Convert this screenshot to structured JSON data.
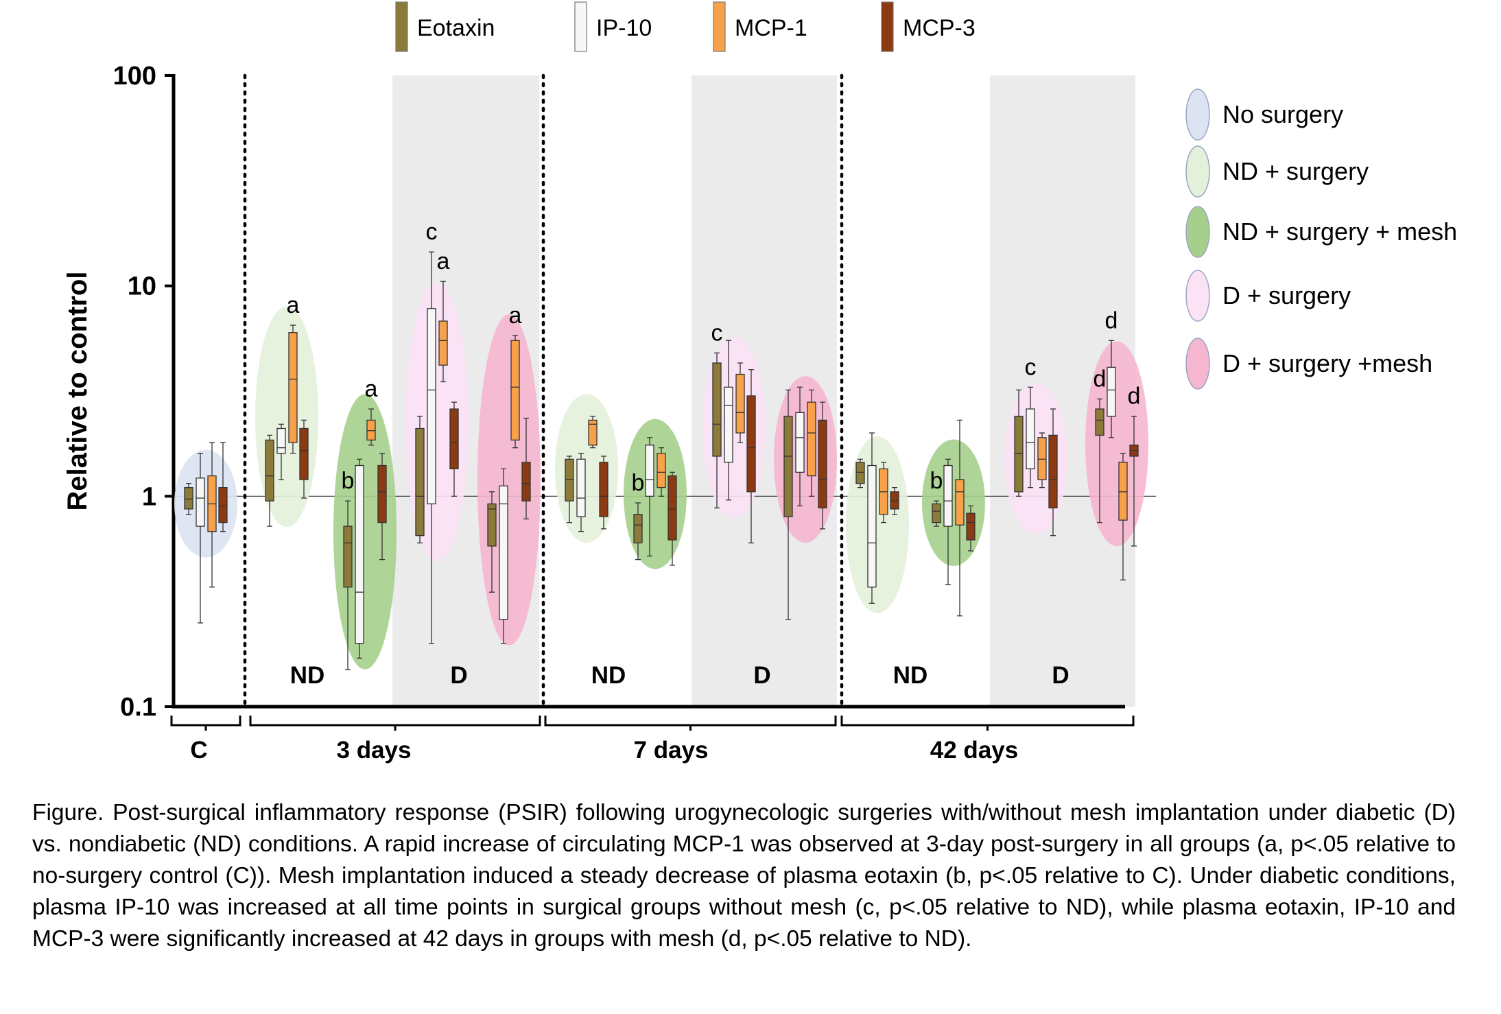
{
  "chart_data": {
    "type": "boxplot",
    "ylabel": "Relative to control",
    "yscale": "log",
    "ylim": [
      0.1,
      100
    ],
    "yticks": [
      "100",
      "10",
      "1",
      "0.1"
    ],
    "reference_line": 1,
    "marker_legend": [
      {
        "name": "Eotaxin",
        "color": "#8B7A3A"
      },
      {
        "name": "IP-10",
        "color": "#F7F7F7"
      },
      {
        "name": "MCP-1",
        "color": "#F7A14B"
      },
      {
        "name": "MCP-3",
        "color": "#8B3A12"
      }
    ],
    "group_legend": [
      {
        "name": "No surgery",
        "color": "#DCE3F2"
      },
      {
        "name": "ND + surgery",
        "color": "#E3F0DA"
      },
      {
        "name": "ND + surgery + mesh",
        "color": "#A6CF8C"
      },
      {
        "name": "D + surgery",
        "color": "#FBE2F5"
      },
      {
        "name": "D + surgery +mesh",
        "color": "#F5B6CF"
      }
    ],
    "periods": [
      {
        "label": "C",
        "subgroups": []
      },
      {
        "label": "3 days",
        "subgroups": [
          "ND",
          "D"
        ]
      },
      {
        "label": "7 days",
        "subgroups": [
          "ND",
          "D"
        ]
      },
      {
        "label": "42 days",
        "subgroups": [
          "ND",
          "D"
        ]
      }
    ],
    "groups": [
      {
        "period": "C",
        "condition": "No surgery",
        "letters": [],
        "boxes": [
          {
            "marker": "Eotaxin",
            "min": 0.82,
            "q1": 0.87,
            "median": 0.97,
            "q3": 1.1,
            "max": 1.15
          },
          {
            "marker": "IP-10",
            "min": 0.25,
            "q1": 0.72,
            "median": 0.98,
            "q3": 1.22,
            "max": 1.6
          },
          {
            "marker": "MCP-1",
            "min": 0.37,
            "q1": 0.68,
            "median": 0.92,
            "q3": 1.25,
            "max": 1.8
          },
          {
            "marker": "MCP-3",
            "min": 0.68,
            "q1": 0.75,
            "median": 0.9,
            "q3": 1.1,
            "max": 1.8
          }
        ]
      },
      {
        "period": "3 days",
        "condition": "ND + surgery",
        "letters": [
          {
            "text": "a",
            "marker": "MCP-1"
          }
        ],
        "boxes": [
          {
            "marker": "Eotaxin",
            "min": 0.72,
            "q1": 0.95,
            "median": 1.25,
            "q3": 1.85,
            "max": 1.95
          },
          {
            "marker": "IP-10",
            "min": 1.2,
            "q1": 1.6,
            "median": 1.7,
            "q3": 2.1,
            "max": 2.2
          },
          {
            "marker": "MCP-1",
            "min": 1.6,
            "q1": 1.8,
            "median": 3.6,
            "q3": 6.0,
            "max": 6.5
          },
          {
            "marker": "MCP-3",
            "min": 0.98,
            "q1": 1.2,
            "median": 1.65,
            "q3": 2.1,
            "max": 2.3
          }
        ]
      },
      {
        "period": "3 days",
        "condition": "ND + surgery + mesh",
        "letters": [
          {
            "text": "b",
            "marker": "Eotaxin"
          },
          {
            "text": "a",
            "marker": "MCP-1"
          }
        ],
        "boxes": [
          {
            "marker": "Eotaxin",
            "min": 0.15,
            "q1": 0.37,
            "median": 0.6,
            "q3": 0.72,
            "max": 0.95
          },
          {
            "marker": "IP-10",
            "min": 0.17,
            "q1": 0.2,
            "median": 0.35,
            "q3": 1.4,
            "max": 1.5
          },
          {
            "marker": "MCP-1",
            "min": 1.75,
            "q1": 1.85,
            "median": 2.05,
            "q3": 2.3,
            "max": 2.6
          },
          {
            "marker": "MCP-3",
            "min": 0.5,
            "q1": 0.75,
            "median": 1.05,
            "q3": 1.4,
            "max": 1.6
          }
        ]
      },
      {
        "period": "3 days",
        "condition": "D + surgery",
        "letters": [
          {
            "text": "c",
            "marker": "IP-10"
          },
          {
            "text": "a",
            "marker": "MCP-1"
          }
        ],
        "boxes": [
          {
            "marker": "Eotaxin",
            "min": 0.6,
            "q1": 0.65,
            "median": 1.0,
            "q3": 2.1,
            "max": 2.4
          },
          {
            "marker": "IP-10",
            "min": 0.2,
            "q1": 0.92,
            "median": 3.2,
            "q3": 7.8,
            "max": 14.5
          },
          {
            "marker": "MCP-1",
            "min": 3.5,
            "q1": 4.2,
            "median": 5.5,
            "q3": 6.8,
            "max": 10.5
          },
          {
            "marker": "MCP-3",
            "min": 1.0,
            "q1": 1.35,
            "median": 1.8,
            "q3": 2.6,
            "max": 2.8
          }
        ]
      },
      {
        "period": "3 days",
        "condition": "D + surgery +mesh",
        "letters": [
          {
            "text": "a",
            "marker": "MCP-1"
          }
        ],
        "boxes": [
          {
            "marker": "Eotaxin",
            "min": 0.35,
            "q1": 0.58,
            "median": 0.87,
            "q3": 0.92,
            "max": 1.05
          },
          {
            "marker": "IP-10",
            "min": 0.2,
            "q1": 0.26,
            "median": 0.92,
            "q3": 1.12,
            "max": 1.35
          },
          {
            "marker": "MCP-1",
            "min": 1.7,
            "q1": 1.85,
            "median": 3.3,
            "q3": 5.5,
            "max": 5.8
          },
          {
            "marker": "MCP-3",
            "min": 0.78,
            "q1": 0.95,
            "median": 1.15,
            "q3": 1.45,
            "max": 2.35
          }
        ]
      },
      {
        "period": "7 days",
        "condition": "ND + surgery",
        "letters": [],
        "boxes": [
          {
            "marker": "Eotaxin",
            "min": 0.75,
            "q1": 0.95,
            "median": 1.2,
            "q3": 1.5,
            "max": 1.55
          },
          {
            "marker": "IP-10",
            "min": 0.68,
            "q1": 0.8,
            "median": 0.98,
            "q3": 1.5,
            "max": 1.6
          },
          {
            "marker": "MCP-1",
            "min": 1.7,
            "q1": 1.75,
            "median": 2.2,
            "q3": 2.3,
            "max": 2.4
          },
          {
            "marker": "MCP-3",
            "min": 0.7,
            "q1": 0.8,
            "median": 1.0,
            "q3": 1.45,
            "max": 1.55
          }
        ]
      },
      {
        "period": "7 days",
        "condition": "ND + surgery + mesh",
        "letters": [
          {
            "text": "b",
            "marker": "Eotaxin"
          }
        ],
        "boxes": [
          {
            "marker": "Eotaxin",
            "min": 0.5,
            "q1": 0.6,
            "median": 0.73,
            "q3": 0.82,
            "max": 0.93
          },
          {
            "marker": "IP-10",
            "min": 0.52,
            "q1": 1.0,
            "median": 1.2,
            "q3": 1.75,
            "max": 1.9
          },
          {
            "marker": "MCP-1",
            "min": 1.0,
            "q1": 1.1,
            "median": 1.3,
            "q3": 1.6,
            "max": 1.7
          },
          {
            "marker": "MCP-3",
            "min": 0.47,
            "q1": 0.62,
            "median": 0.87,
            "q3": 1.25,
            "max": 1.3
          }
        ]
      },
      {
        "period": "7 days",
        "condition": "D + surgery",
        "letters": [
          {
            "text": "c",
            "marker": "Eotaxin"
          }
        ],
        "boxes": [
          {
            "marker": "Eotaxin",
            "min": 0.88,
            "q1": 1.55,
            "median": 2.2,
            "q3": 4.3,
            "max": 4.8
          },
          {
            "marker": "IP-10",
            "min": 0.96,
            "q1": 1.45,
            "median": 2.7,
            "q3": 3.3,
            "max": 5.5
          },
          {
            "marker": "MCP-1",
            "min": 1.8,
            "q1": 2.0,
            "median": 2.5,
            "q3": 3.8,
            "max": 4.3
          },
          {
            "marker": "MCP-3",
            "min": 0.6,
            "q1": 1.05,
            "median": 1.7,
            "q3": 3.0,
            "max": 4.0
          }
        ]
      },
      {
        "period": "7 days",
        "condition": "D + surgery +mesh",
        "letters": [],
        "boxes": [
          {
            "marker": "Eotaxin",
            "min": 0.26,
            "q1": 0.8,
            "median": 1.55,
            "q3": 2.4,
            "max": 3.2
          },
          {
            "marker": "IP-10",
            "min": 0.9,
            "q1": 1.3,
            "median": 1.9,
            "q3": 2.5,
            "max": 3.3
          },
          {
            "marker": "MCP-1",
            "min": 1.0,
            "q1": 1.25,
            "median": 2.0,
            "q3": 2.8,
            "max": 3.2
          },
          {
            "marker": "MCP-3",
            "min": 0.7,
            "q1": 0.88,
            "median": 1.2,
            "q3": 2.3,
            "max": 2.8
          }
        ]
      },
      {
        "period": "42 days",
        "condition": "ND + surgery",
        "letters": [],
        "boxes": [
          {
            "marker": "Eotaxin",
            "min": 1.1,
            "q1": 1.15,
            "median": 1.3,
            "q3": 1.45,
            "max": 1.5
          },
          {
            "marker": "IP-10",
            "min": 0.31,
            "q1": 0.37,
            "median": 0.6,
            "q3": 1.4,
            "max": 2.0
          },
          {
            "marker": "MCP-1",
            "min": 0.75,
            "q1": 0.82,
            "median": 1.05,
            "q3": 1.35,
            "max": 1.45
          },
          {
            "marker": "MCP-3",
            "min": 0.82,
            "q1": 0.87,
            "median": 0.95,
            "q3": 1.05,
            "max": 1.1
          }
        ]
      },
      {
        "period": "42 days",
        "condition": "ND + surgery + mesh",
        "letters": [
          {
            "text": "b",
            "marker": "Eotaxin"
          }
        ],
        "boxes": [
          {
            "marker": "Eotaxin",
            "min": 0.72,
            "q1": 0.75,
            "median": 0.85,
            "q3": 0.92,
            "max": 0.95
          },
          {
            "marker": "IP-10",
            "min": 0.38,
            "q1": 0.72,
            "median": 0.95,
            "q3": 1.4,
            "max": 1.5
          },
          {
            "marker": "MCP-1",
            "min": 0.27,
            "q1": 0.73,
            "median": 1.05,
            "q3": 1.2,
            "max": 2.3
          },
          {
            "marker": "MCP-3",
            "min": 0.55,
            "q1": 0.62,
            "median": 0.75,
            "q3": 0.83,
            "max": 0.9
          }
        ]
      },
      {
        "period": "42 days",
        "condition": "D + surgery",
        "letters": [
          {
            "text": "c",
            "marker": "IP-10"
          }
        ],
        "boxes": [
          {
            "marker": "Eotaxin",
            "min": 1.0,
            "q1": 1.05,
            "median": 1.6,
            "q3": 2.4,
            "max": 3.2
          },
          {
            "marker": "IP-10",
            "min": 1.1,
            "q1": 1.35,
            "median": 1.8,
            "q3": 2.6,
            "max": 3.3
          },
          {
            "marker": "MCP-1",
            "min": 1.1,
            "q1": 1.2,
            "median": 1.5,
            "q3": 1.9,
            "max": 2.0
          },
          {
            "marker": "MCP-3",
            "min": 0.65,
            "q1": 0.88,
            "median": 1.2,
            "q3": 1.95,
            "max": 2.6
          }
        ]
      },
      {
        "period": "42 days",
        "condition": "D + surgery +mesh",
        "letters": [
          {
            "text": "d",
            "marker": "Eotaxin"
          },
          {
            "text": "d",
            "marker": "IP-10"
          },
          {
            "text": "d",
            "marker": "MCP-3"
          }
        ],
        "boxes": [
          {
            "marker": "Eotaxin",
            "min": 0.75,
            "q1": 1.95,
            "median": 2.3,
            "q3": 2.6,
            "max": 2.9
          },
          {
            "marker": "IP-10",
            "min": 1.9,
            "q1": 2.4,
            "median": 3.2,
            "q3": 4.1,
            "max": 5.5
          },
          {
            "marker": "MCP-1",
            "min": 0.4,
            "q1": 0.77,
            "median": 1.05,
            "q3": 1.45,
            "max": 1.6
          },
          {
            "marker": "MCP-3",
            "min": 0.58,
            "q1": 1.55,
            "median": 1.65,
            "q3": 1.75,
            "max": 2.4
          }
        ]
      }
    ]
  },
  "caption": "Figure. Post-surgical inflammatory response (PSIR) following urogynecologic surgeries with/without mesh implantation under diabetic (D) vs. nondiabetic (ND) conditions. A rapid increase of circulating MCP-1 was observed at 3-day post-surgery in all groups (a, p<.05 relative to no-surgery control (C)). Mesh implantation induced a steady decrease of plasma eotaxin (b, p<.05 relative to C). Under diabetic conditions, plasma IP-10 was increased at all time points in surgical groups without mesh (c, p<.05 relative to ND), while plasma eotaxin, IP-10 and MCP-3 were significantly increased at 42 days in groups with mesh (d, p<.05 relative to ND)."
}
